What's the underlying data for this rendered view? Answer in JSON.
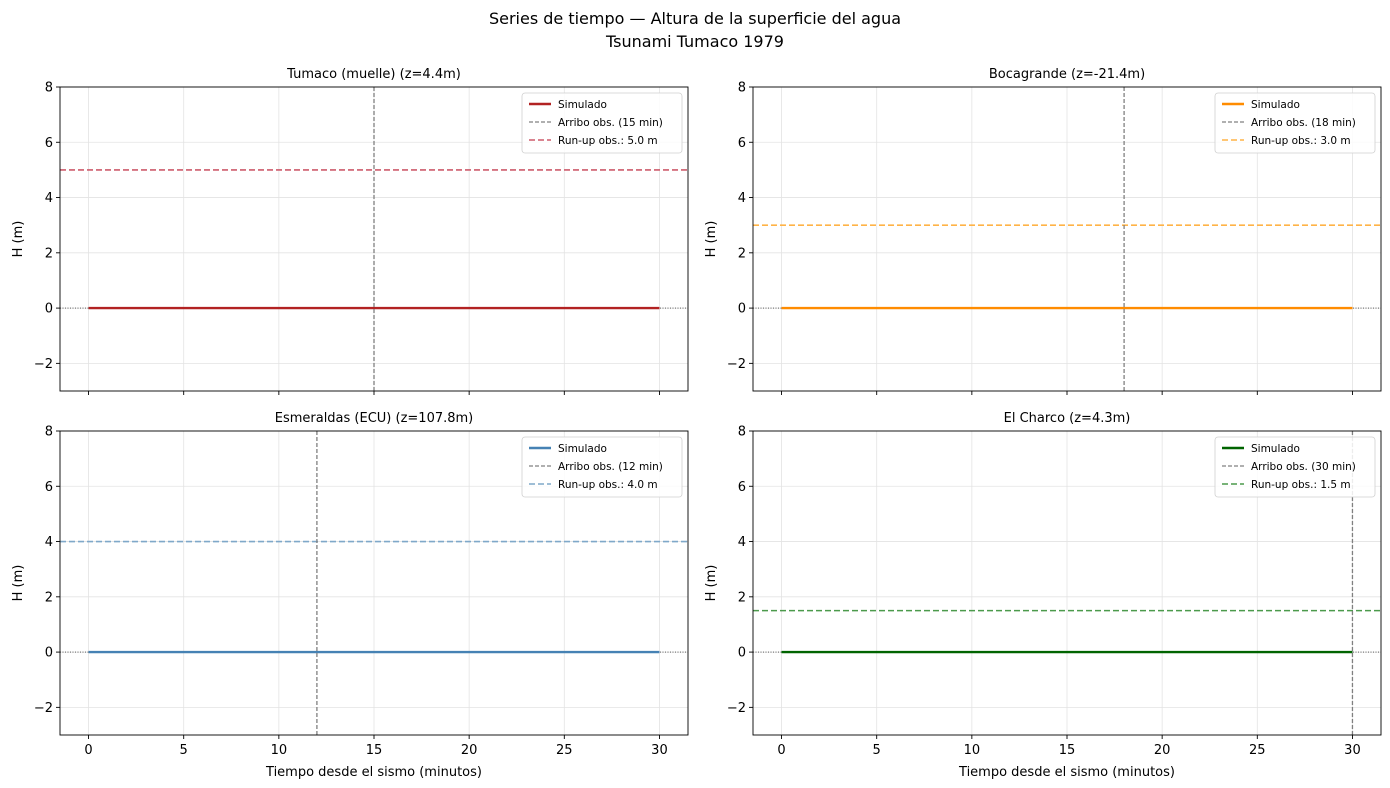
{
  "figure": {
    "title_line1": "Series de tiempo — Altura de la superficie del agua",
    "title_line2": "Tsunami Tumaco 1979"
  },
  "chart_data": [
    {
      "type": "line",
      "title": "Tumaco (muelle) (z=4.4m)",
      "xlabel": "",
      "ylabel": "H (m)",
      "xlim": [
        -1.5,
        31.5
      ],
      "ylim": [
        -3,
        8
      ],
      "xticks": [
        0,
        5,
        10,
        15,
        20,
        25,
        30
      ],
      "yticks": [
        -2,
        0,
        2,
        4,
        6,
        8
      ],
      "show_x_tick_labels": false,
      "grid": true,
      "legend_position": "top-right",
      "color": "#b22222",
      "runup_color": "#cd5c6c",
      "series": [
        {
          "name": "Simulado",
          "x": [
            0,
            30
          ],
          "y": [
            0,
            0
          ]
        }
      ],
      "arrival_label": "Arribo obs. (15 min)",
      "arrival_min": 15,
      "runup_label": "Run-up obs.: 5.0 m",
      "runup_m": 5.0
    },
    {
      "type": "line",
      "title": "Bocagrande (z=-21.4m)",
      "xlabel": "",
      "ylabel": "H (m)",
      "xlim": [
        -1.5,
        31.5
      ],
      "ylim": [
        -3,
        8
      ],
      "xticks": [
        0,
        5,
        10,
        15,
        20,
        25,
        30
      ],
      "yticks": [
        -2,
        0,
        2,
        4,
        6,
        8
      ],
      "show_x_tick_labels": false,
      "grid": true,
      "legend_position": "top-right",
      "color": "#ff8c00",
      "runup_color": "#ffb347",
      "series": [
        {
          "name": "Simulado",
          "x": [
            0,
            30
          ],
          "y": [
            0,
            0
          ]
        }
      ],
      "arrival_label": "Arribo obs. (18 min)",
      "arrival_min": 18,
      "runup_label": "Run-up obs.: 3.0 m",
      "runup_m": 3.0
    },
    {
      "type": "line",
      "title": "Esmeraldas (ECU) (z=107.8m)",
      "xlabel": "Tiempo desde el sismo (minutos)",
      "ylabel": "H (m)",
      "xlim": [
        -1.5,
        31.5
      ],
      "ylim": [
        -3,
        8
      ],
      "xticks": [
        0,
        5,
        10,
        15,
        20,
        25,
        30
      ],
      "yticks": [
        -2,
        0,
        2,
        4,
        6,
        8
      ],
      "show_x_tick_labels": true,
      "grid": true,
      "legend_position": "top-right",
      "color": "#4682b4",
      "runup_color": "#7fa8c9",
      "series": [
        {
          "name": "Simulado",
          "x": [
            0,
            30
          ],
          "y": [
            0,
            0
          ]
        }
      ],
      "arrival_label": "Arribo obs. (12 min)",
      "arrival_min": 12,
      "runup_label": "Run-up obs.: 4.0 m",
      "runup_m": 4.0
    },
    {
      "type": "line",
      "title": "El Charco (z=4.3m)",
      "xlabel": "Tiempo desde el sismo (minutos)",
      "ylabel": "H (m)",
      "xlim": [
        -1.5,
        31.5
      ],
      "ylim": [
        -3,
        8
      ],
      "xticks": [
        0,
        5,
        10,
        15,
        20,
        25,
        30
      ],
      "yticks": [
        -2,
        0,
        2,
        4,
        6,
        8
      ],
      "show_x_tick_labels": true,
      "grid": true,
      "legend_position": "top-right",
      "color": "#006400",
      "runup_color": "#4c9a4c",
      "series": [
        {
          "name": "Simulado",
          "x": [
            0,
            30
          ],
          "y": [
            0,
            0
          ]
        }
      ],
      "arrival_label": "Arribo obs. (30 min)",
      "arrival_min": 30,
      "runup_label": "Run-up obs.: 1.5 m",
      "runup_m": 1.5
    }
  ]
}
